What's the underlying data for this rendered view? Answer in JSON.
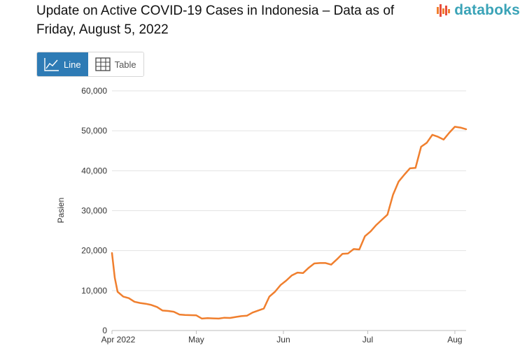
{
  "header": {
    "title": "Update on Active COVID-19 Cases in Indonesia – Data as of Friday, August 5, 2022",
    "logo_text": "databoks"
  },
  "toggle": {
    "line_label": "Line",
    "table_label": "Table"
  },
  "colors": {
    "line": "#f07f2e",
    "accent": "#2e7bb5",
    "logo": "#3aa3b7",
    "grid": "#e3e3e3"
  },
  "chart_data": {
    "type": "line",
    "title": "Update on Active COVID-19 Cases in Indonesia – Data as of Friday, August 5, 2022",
    "xlabel": "",
    "ylabel": "Pasien",
    "ylim": [
      0,
      60000
    ],
    "yticks": [
      0,
      10000,
      20000,
      30000,
      40000,
      50000,
      60000
    ],
    "ytick_labels": [
      "0",
      "10,000",
      "20,000",
      "30,000",
      "40,000",
      "50,000",
      "60,000"
    ],
    "xlim": [
      "2022-04-01",
      "2022-08-05"
    ],
    "xticks": [
      {
        "date": "2022-04-01",
        "label": "Apr 2022"
      },
      {
        "date": "2022-05-01",
        "label": "May"
      },
      {
        "date": "2022-06-01",
        "label": "Jun"
      },
      {
        "date": "2022-07-01",
        "label": "Jul"
      },
      {
        "date": "2022-08-01",
        "label": "Aug"
      }
    ],
    "grid": true,
    "legend": "none",
    "series": [
      {
        "x": [
          "2022-04-01",
          "2022-04-02",
          "2022-04-03",
          "2022-04-05",
          "2022-04-07",
          "2022-04-09",
          "2022-04-11",
          "2022-04-13",
          "2022-04-15",
          "2022-04-17",
          "2022-04-19",
          "2022-04-21",
          "2022-04-23",
          "2022-04-25",
          "2022-04-27",
          "2022-04-29",
          "2022-05-01",
          "2022-05-03",
          "2022-05-05",
          "2022-05-07",
          "2022-05-09",
          "2022-05-11",
          "2022-05-13",
          "2022-05-15",
          "2022-05-17",
          "2022-05-19",
          "2022-05-21",
          "2022-05-23",
          "2022-05-25",
          "2022-05-27",
          "2022-05-29",
          "2022-05-31",
          "2022-06-02",
          "2022-06-04",
          "2022-06-06",
          "2022-06-08",
          "2022-06-10",
          "2022-06-12",
          "2022-06-14",
          "2022-06-16",
          "2022-06-18",
          "2022-06-20",
          "2022-06-22",
          "2022-06-24",
          "2022-06-26",
          "2022-06-28",
          "2022-06-30",
          "2022-07-02",
          "2022-07-04",
          "2022-07-06",
          "2022-07-08",
          "2022-07-10",
          "2022-07-12",
          "2022-07-14",
          "2022-07-16",
          "2022-07-18",
          "2022-07-20",
          "2022-07-22",
          "2022-07-24",
          "2022-07-26",
          "2022-07-28",
          "2022-07-30",
          "2022-08-01",
          "2022-08-03",
          "2022-08-05"
        ],
        "y": [
          19400,
          13200,
          9700,
          8500,
          8100,
          7200,
          6900,
          6700,
          6400,
          5900,
          5000,
          4900,
          4700,
          4000,
          3900,
          3850,
          3800,
          3000,
          3100,
          3050,
          3000,
          3200,
          3150,
          3400,
          3600,
          3700,
          4500,
          5000,
          5500,
          8500,
          9700,
          11400,
          12500,
          13800,
          14500,
          14400,
          15700,
          16800,
          16900,
          16900,
          16500,
          17800,
          19200,
          19300,
          20400,
          20300,
          23600,
          24800,
          26400,
          27700,
          29000,
          34000,
          37300,
          39000,
          40600,
          40700,
          46000,
          47000,
          49000,
          48500,
          47800,
          49500,
          51000,
          50800,
          50400
        ]
      }
    ]
  }
}
